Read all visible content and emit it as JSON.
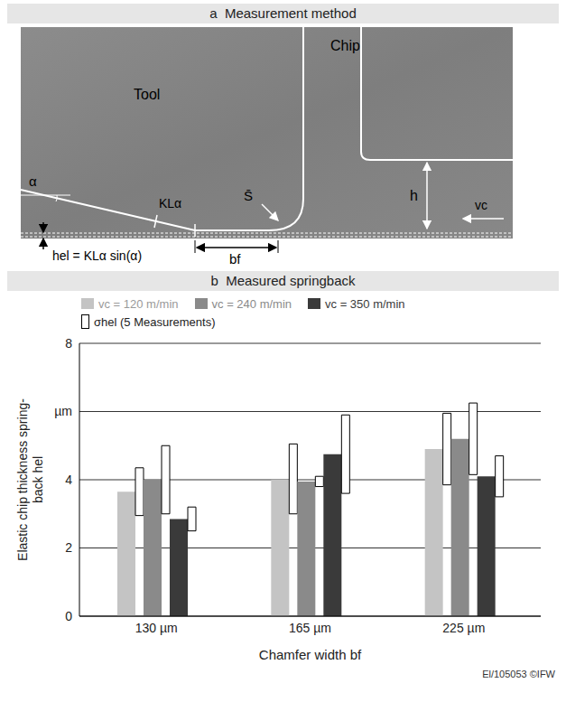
{
  "panel_a": {
    "title": "a  Measurement method",
    "labels": {
      "tool": "Tool",
      "chip": "Chip",
      "alpha": "α",
      "contact_length": "KLα",
      "formula": "hel = KLα sin(α)",
      "s": "S̄",
      "chamfer": "bf",
      "h": "h",
      "vc": "vc"
    }
  },
  "chart_data": {
    "type": "bar",
    "title": "b  Measured springback",
    "x_label": "Chamfer width bf",
    "y_label": "Elastic chip thickness spring-back hel",
    "categories": [
      "130 µm",
      "165 µm",
      "225 µm"
    ],
    "series": [
      {
        "name": "vc = 120 m/min",
        "color": "#c4c4c4",
        "values": [
          3.65,
          4.0,
          4.9
        ],
        "error_range": [
          [
            2.95,
            4.35
          ],
          [
            3.0,
            5.05
          ],
          [
            3.85,
            5.95
          ]
        ]
      },
      {
        "name": "vc = 240 m/min",
        "color": "#8a8a8a",
        "values": [
          4.0,
          3.95,
          5.2
        ],
        "error_range": [
          [
            3.0,
            5.0
          ],
          [
            3.8,
            4.1
          ],
          [
            4.15,
            6.25
          ]
        ]
      },
      {
        "name": "vc = 350 m/min",
        "color": "#3a3a3a",
        "values": [
          2.85,
          4.75,
          4.1
        ],
        "error_range": [
          [
            2.5,
            3.2
          ],
          [
            3.6,
            5.9
          ],
          [
            3.5,
            4.7
          ]
        ]
      }
    ],
    "ylim": [
      0,
      8
    ],
    "yticks": [
      0,
      2,
      4,
      {
        "value": 6,
        "label": "µm"
      },
      8
    ],
    "grid": true,
    "legend": "top",
    "annotation": "σhel (5 Measurements)"
  },
  "footer": "El/105053 ©IFW"
}
